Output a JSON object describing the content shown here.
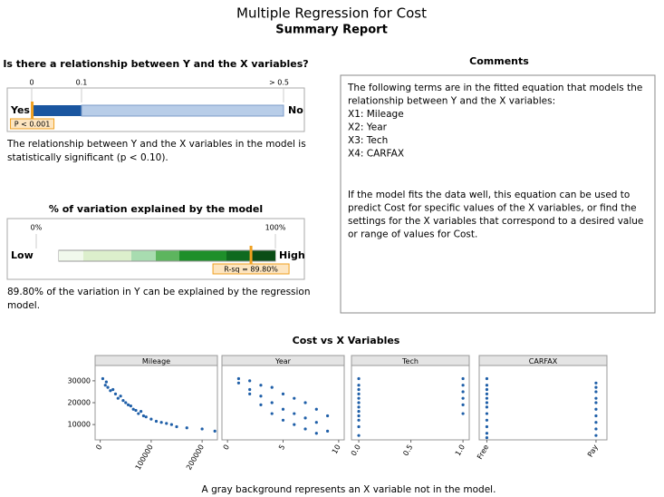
{
  "title": "Multiple Regression for Cost",
  "subtitle": "Summary Report",
  "relationship": {
    "title": "Is there a relationship between Y and the X variables?",
    "ticks": [
      {
        "value": 0,
        "label": "0"
      },
      {
        "value": 0.1,
        "label": "0.1"
      },
      {
        "value": 0.5,
        "label": "> 0.5"
      }
    ],
    "left_label": "Yes",
    "right_label": "No",
    "p_value": 0.001,
    "p_label": "P < 0.001",
    "text": [
      "The relationship between Y and the X variables in the model is",
      "statistically significant (p < 0.10)."
    ]
  },
  "variation": {
    "title": "% of variation explained by the model",
    "ticks": [
      {
        "value": 0,
        "label": "0%"
      },
      {
        "value": 100,
        "label": "100%"
      }
    ],
    "left_label": "Low",
    "right_label": "High",
    "r_sq": 89.8,
    "r_sq_label": "R-sq = 89.80%",
    "text": [
      "89.80% of the variation in Y can be explained by the regression",
      "model."
    ]
  },
  "comments": {
    "title": "Comments",
    "lines": [
      "The following terms are in the fitted equation that models the",
      "relationship between Y and the X variables:",
      "X1: Mileage",
      "X2: Year",
      "X3: Tech",
      "X4: CARFAX"
    ],
    "paragraph": [
      "If the model fits the data well, this equation can be used to",
      "predict Cost for specific values of the X variables, or find the",
      "settings for the X variables that correspond to a desired value",
      "or range of values for Cost."
    ]
  },
  "plots_title": "Cost vs X Variables",
  "footnote": "A gray background represents an X variable not in the model.",
  "chart_data": [
    {
      "type": "scatter",
      "title": "Mileage",
      "color": "#1f5fa8",
      "x": [
        5000,
        10000,
        12000,
        15000,
        20000,
        25000,
        30000,
        35000,
        40000,
        45000,
        50000,
        55000,
        60000,
        65000,
        70000,
        75000,
        80000,
        85000,
        90000,
        100000,
        110000,
        120000,
        130000,
        140000,
        150000,
        170000,
        200000,
        225000
      ],
      "y": [
        31000,
        28000,
        29500,
        27000,
        25500,
        26000,
        24000,
        22000,
        23000,
        21000,
        20000,
        19000,
        18500,
        17000,
        16500,
        15000,
        16000,
        14000,
        13500,
        12500,
        11500,
        11000,
        10500,
        10000,
        9000,
        8500,
        8000,
        7000
      ],
      "xlim": [
        -10000,
        230000
      ],
      "xticks": [
        0,
        100000,
        200000
      ],
      "ylim": [
        3000,
        37000
      ],
      "yticks": [
        10000,
        20000,
        30000
      ]
    },
    {
      "type": "scatter",
      "title": "Year",
      "color": "#1f5fa8",
      "x": [
        1,
        1,
        2,
        2,
        2,
        3,
        3,
        3,
        4,
        4,
        4,
        5,
        5,
        5,
        6,
        6,
        6,
        7,
        7,
        7,
        8,
        8,
        8,
        9,
        9
      ],
      "y": [
        31000,
        29000,
        30000,
        26000,
        24000,
        28000,
        23000,
        19000,
        27000,
        20000,
        15000,
        24000,
        17000,
        12000,
        22000,
        15000,
        10000,
        20000,
        13000,
        8000,
        17000,
        11000,
        6000,
        14000,
        7000
      ],
      "xlim": [
        -0.5,
        10.5
      ],
      "xticks": [
        0,
        5,
        10
      ],
      "ylim": [
        3000,
        37000
      ]
    },
    {
      "type": "scatter",
      "title": "Tech",
      "color": "#1f5fa8",
      "x": [
        0,
        0,
        0,
        0,
        0,
        0,
        0,
        0,
        0,
        0,
        0,
        0,
        1,
        1,
        1,
        1,
        1,
        1
      ],
      "y": [
        31000,
        28000,
        26000,
        24000,
        22000,
        20000,
        18000,
        16000,
        14000,
        12000,
        9000,
        5000,
        31000,
        28000,
        25000,
        22000,
        19000,
        15000
      ],
      "xlim": [
        -0.07,
        1.06
      ],
      "xticks": [
        {
          "value": 0,
          "label": "0.0"
        },
        {
          "value": 0.5,
          "label": "0.5"
        },
        {
          "value": 1,
          "label": "1.0"
        }
      ],
      "ylim": [
        3000,
        37000
      ]
    },
    {
      "type": "scatter",
      "title": "CARFAX",
      "color": "#1f5fa8",
      "x": [
        0,
        0,
        0,
        0,
        0,
        0,
        0,
        0,
        0,
        0,
        0,
        0,
        1,
        1,
        1,
        1,
        1,
        1,
        1,
        1,
        1,
        1
      ],
      "y": [
        31000,
        28000,
        26000,
        24000,
        22000,
        20000,
        18000,
        15000,
        12000,
        9000,
        6000,
        4000,
        29000,
        27000,
        25000,
        22000,
        20000,
        17000,
        14000,
        11000,
        8000,
        5000
      ],
      "xlim": [
        -0.07,
        1.1
      ],
      "xticks": [
        {
          "value": 0,
          "label": "Free"
        },
        {
          "value": 1,
          "label": "Pay"
        }
      ],
      "ylim": [
        3000,
        37000
      ]
    }
  ]
}
